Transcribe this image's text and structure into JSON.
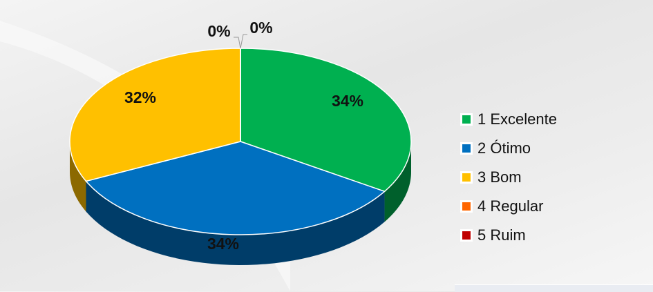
{
  "chart_data": {
    "type": "pie",
    "style": "3d",
    "categories": [
      "1 Excelente",
      "2 Ótimo",
      "3 Bom",
      "4 Regular",
      "5 Ruim"
    ],
    "values": [
      34,
      34,
      32,
      0,
      0
    ],
    "labels": [
      "34%",
      "34%",
      "32%",
      "0%",
      "0%"
    ],
    "colors": [
      "#00B050",
      "#0070C0",
      "#FFC000",
      "#FF6600",
      "#C00000"
    ],
    "legend": "right"
  }
}
